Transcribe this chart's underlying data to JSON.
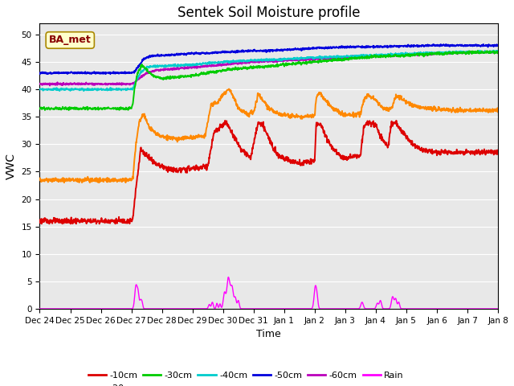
{
  "title": "Sentek Soil Moisture profile",
  "xlabel": "Time",
  "ylabel": "VWC",
  "legend_label": "BA_met",
  "ylim": [
    0,
    52
  ],
  "yticks": [
    0,
    5,
    10,
    15,
    20,
    25,
    30,
    35,
    40,
    45,
    50
  ],
  "bg_color": "#e8e8e8",
  "series_colors": {
    "-10cm": "#dd0000",
    "-20cm": "#ff8800",
    "-30cm": "#00cc00",
    "-40cm": "#00cccc",
    "-50cm": "#0000dd",
    "-60cm": "#bb00bb",
    "Rain": "#ff00ff"
  },
  "n_points": 1500,
  "x_tick_labels": [
    "Dec 24",
    "Dec 25",
    "Dec 26",
    "Dec 27",
    "Dec 28",
    "Dec 29",
    "Dec 30",
    "Dec 31",
    "Jan 1",
    "Jan 2",
    "Jan 3",
    "Jan 4",
    "Jan 5",
    "Jan 6",
    "Jan 7",
    "Jan 8"
  ],
  "n_ticks": 16,
  "figsize": [
    6.4,
    4.8
  ],
  "dpi": 100
}
